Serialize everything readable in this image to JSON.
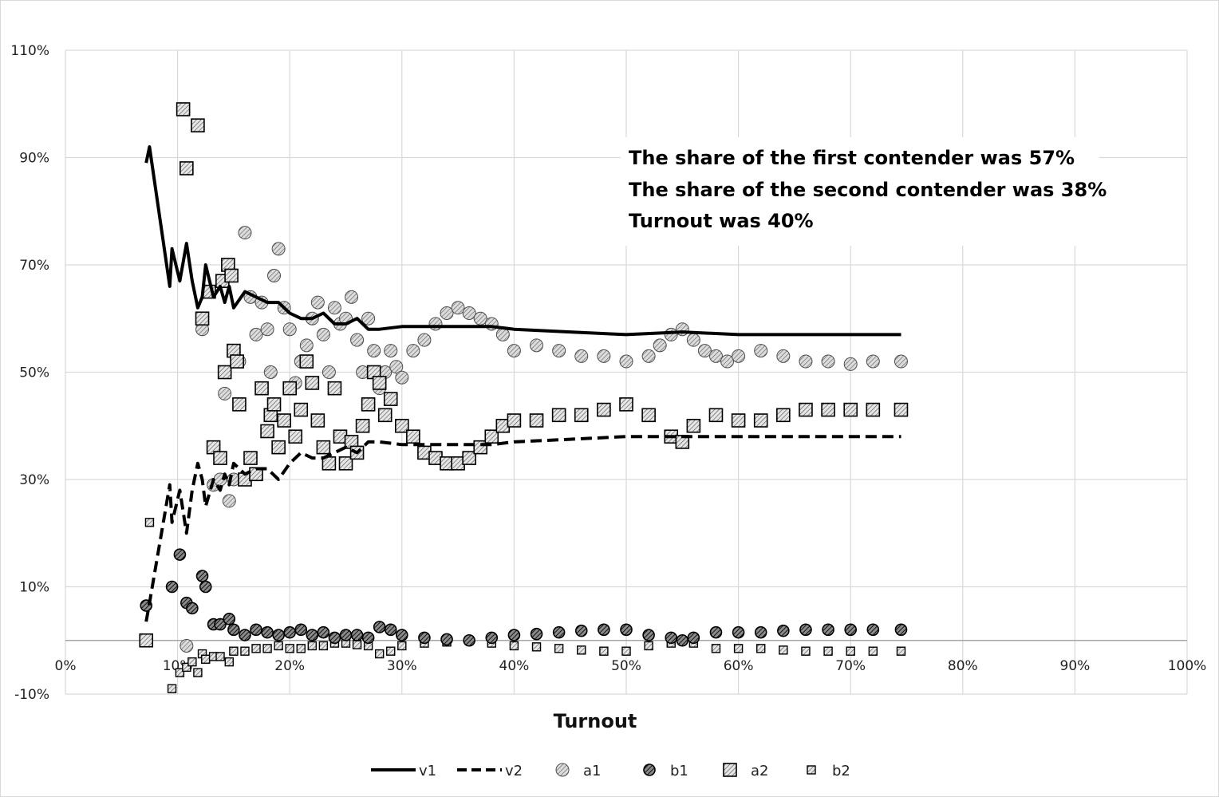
{
  "chart_data": {
    "type": "line",
    "xlabel": "Turnout",
    "ylabel": "",
    "xlim": [
      0,
      100
    ],
    "ylim": [
      -10,
      110
    ],
    "x_ticks": [
      "0%",
      "10%",
      "20%",
      "30%",
      "40%",
      "50%",
      "60%",
      "70%",
      "80%",
      "90%",
      "100%"
    ],
    "y_ticks": [
      "-10%",
      "10%",
      "30%",
      "50%",
      "70%",
      "90%",
      "110%"
    ],
    "grid": true,
    "legend_position": "bottom",
    "annotations": [
      "The share of the first contender was 57%",
      "The share of the second contender was 38%",
      "Turnout was 40%"
    ],
    "series": [
      {
        "name": "v1",
        "style": "solid-line",
        "x": [
          7.2,
          7.5,
          9.3,
          9.5,
          10.2,
          10.8,
          11.3,
          11.8,
          12.2,
          12.5,
          13.2,
          13.8,
          14.2,
          14.6,
          15,
          16,
          17,
          18,
          19,
          20,
          21,
          22,
          23,
          24,
          25,
          26,
          27,
          28,
          30,
          32,
          35,
          38,
          40,
          45,
          50,
          55,
          60,
          65,
          70,
          74.5
        ],
        "y": [
          89,
          92,
          66,
          73,
          67,
          74,
          67,
          62,
          64,
          70,
          64,
          66,
          63,
          66,
          62,
          65,
          64,
          63,
          63,
          61,
          60,
          60,
          61,
          59,
          59,
          60,
          58,
          58,
          58.5,
          58.5,
          58.5,
          58.5,
          58,
          57.5,
          57,
          57.5,
          57,
          57,
          57,
          57
        ]
      },
      {
        "name": "v2",
        "style": "dashed-line",
        "x": [
          7.2,
          7.5,
          9.3,
          9.5,
          10.2,
          10.8,
          11.3,
          11.8,
          12.2,
          12.5,
          13.2,
          13.8,
          14.2,
          14.6,
          15,
          16,
          17,
          18,
          19,
          20,
          21,
          22,
          23,
          24,
          25,
          26,
          27,
          28,
          30,
          32,
          35,
          38,
          40,
          45,
          50,
          55,
          60,
          65,
          70,
          74.5
        ],
        "y": [
          3.5,
          7,
          29,
          22,
          28,
          20,
          28,
          33,
          30,
          25,
          30,
          28,
          31,
          29,
          33,
          31,
          32,
          32,
          30,
          33,
          35,
          34,
          34,
          35,
          36,
          35,
          37,
          37,
          36.5,
          36.5,
          36.5,
          36.5,
          37,
          37.5,
          38,
          38,
          38,
          38,
          38,
          38
        ]
      },
      {
        "name": "a1",
        "style": "marker-circle-light",
        "x": [
          10.8,
          12.2,
          13.2,
          13.8,
          14.2,
          14.6,
          15,
          15.5,
          16,
          16.5,
          17,
          17.5,
          18,
          18.3,
          18.6,
          19,
          19.5,
          20,
          20.5,
          21,
          21.5,
          22,
          22.5,
          23,
          23.5,
          24,
          24.5,
          25,
          25.5,
          26,
          26.5,
          27,
          27.5,
          28,
          28.5,
          29,
          29.5,
          30,
          31,
          32,
          33,
          34,
          35,
          36,
          37,
          38,
          39,
          40,
          42,
          44,
          46,
          48,
          50,
          52,
          53,
          54,
          55,
          56,
          57,
          58,
          59,
          60,
          62,
          64,
          66,
          68,
          70,
          72,
          74.5
        ],
        "y": [
          -1,
          58,
          29,
          30,
          46,
          26,
          30,
          52,
          76,
          64,
          57,
          63,
          58,
          50,
          68,
          73,
          62,
          58,
          48,
          52,
          55,
          60,
          63,
          57,
          50,
          62,
          59,
          60,
          64,
          56,
          50,
          60,
          54,
          47,
          50,
          54,
          51,
          49,
          54,
          56,
          59,
          61,
          62,
          61,
          60,
          59,
          57,
          54,
          55,
          54,
          53,
          53,
          52,
          53,
          55,
          57,
          58,
          56,
          54,
          53,
          52,
          53,
          54,
          53,
          52,
          52,
          51.5,
          52,
          52
        ]
      },
      {
        "name": "b1",
        "style": "marker-circle-dark",
        "x": [
          7.2,
          9.5,
          10.2,
          10.8,
          11.3,
          12.2,
          12.5,
          13.2,
          13.8,
          14.6,
          15,
          16,
          17,
          18,
          19,
          20,
          21,
          22,
          23,
          24,
          25,
          26,
          27,
          28,
          29,
          30,
          32,
          34,
          36,
          38,
          40,
          42,
          44,
          46,
          48,
          50,
          52,
          54,
          55,
          56,
          58,
          60,
          62,
          64,
          66,
          68,
          70,
          72,
          74.5
        ],
        "y": [
          6.5,
          10,
          16,
          7,
          6,
          12,
          10,
          3,
          3,
          4,
          2,
          1,
          2,
          1.5,
          1,
          1.5,
          2,
          1,
          1.5,
          0.5,
          1,
          1,
          0.5,
          2.5,
          2,
          1,
          0.5,
          0.2,
          0,
          0.5,
          1,
          1.2,
          1.5,
          1.8,
          2,
          2,
          1,
          0.5,
          0,
          0.5,
          1.5,
          1.5,
          1.5,
          1.8,
          2,
          2,
          2,
          2,
          2
        ]
      },
      {
        "name": "a2",
        "style": "marker-square-large",
        "x": [
          7.2,
          10.5,
          10.8,
          11.8,
          12.2,
          12.8,
          13.2,
          13.8,
          14,
          14.2,
          14.5,
          14.8,
          15,
          15.3,
          15.5,
          16,
          16.5,
          17,
          17.5,
          18,
          18.3,
          18.6,
          19,
          19.5,
          20,
          20.5,
          21,
          21.5,
          22,
          22.5,
          23,
          23.5,
          24,
          24.5,
          25,
          25.5,
          26,
          26.5,
          27,
          27.5,
          28,
          28.5,
          29,
          30,
          31,
          32,
          33,
          34,
          35,
          36,
          37,
          38,
          39,
          40,
          42,
          44,
          46,
          48,
          50,
          52,
          54,
          55,
          56,
          58,
          60,
          62,
          64,
          66,
          68,
          70,
          72,
          74.5
        ],
        "y": [
          0,
          99,
          88,
          96,
          60,
          65,
          36,
          34,
          67,
          50,
          70,
          68,
          54,
          52,
          44,
          30,
          34,
          31,
          47,
          39,
          42,
          44,
          36,
          41,
          47,
          38,
          43,
          52,
          48,
          41,
          36,
          33,
          47,
          38,
          33,
          37,
          35,
          40,
          44,
          50,
          48,
          42,
          45,
          40,
          38,
          35,
          34,
          33,
          33,
          34,
          36,
          38,
          40,
          41,
          41,
          42,
          42,
          43,
          44,
          42,
          38,
          37,
          40,
          42,
          41,
          41,
          42,
          43,
          43,
          43,
          43,
          43
        ]
      },
      {
        "name": "b2",
        "style": "marker-square-small",
        "x": [
          7.5,
          9.5,
          10.2,
          10.8,
          11.3,
          11.8,
          12.2,
          12.5,
          13.2,
          13.8,
          14.6,
          15,
          16,
          17,
          18,
          19,
          20,
          21,
          22,
          23,
          24,
          25,
          26,
          27,
          28,
          29,
          30,
          32,
          34,
          36,
          38,
          40,
          42,
          44,
          46,
          48,
          50,
          52,
          54,
          56,
          58,
          60,
          62,
          64,
          66,
          68,
          70,
          72,
          74.5
        ],
        "y": [
          22,
          -9,
          -6,
          -5,
          -4,
          -6,
          -2.5,
          -3.5,
          -3,
          -3,
          -4,
          -2,
          -2,
          -1.5,
          -1.5,
          -1,
          -1.5,
          -1.5,
          -1,
          -1,
          -0.5,
          -0.5,
          -0.8,
          -1,
          -2.5,
          -2,
          -1,
          -0.5,
          -0.3,
          0,
          -0.5,
          -1,
          -1.2,
          -1.5,
          -1.8,
          -2,
          -2,
          -1,
          -0.5,
          -0.5,
          -1.5,
          -1.5,
          -1.5,
          -1.8,
          -2,
          -2,
          -2,
          -2,
          -2
        ]
      }
    ]
  },
  "legend": [
    {
      "key": "v1",
      "label": "v1"
    },
    {
      "key": "v2",
      "label": "v2"
    },
    {
      "key": "a1",
      "label": "a1"
    },
    {
      "key": "b1",
      "label": "b1"
    },
    {
      "key": "a2",
      "label": "a2"
    },
    {
      "key": "b2",
      "label": "b2"
    }
  ],
  "colors": {
    "line": "#000000",
    "grid": "#d9d9d9",
    "a1_fill": "#bdbdbd",
    "b1_fill": "#6a6a6a",
    "a2_fill": "#d0d0d0",
    "b2_fill": "#cfcfcf"
  }
}
